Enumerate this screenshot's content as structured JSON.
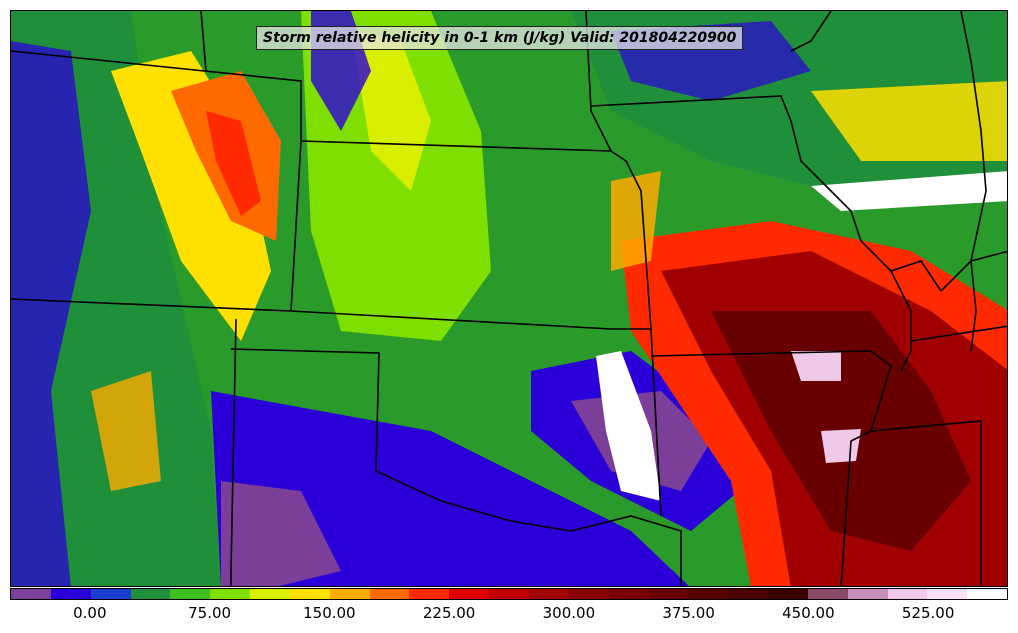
{
  "title": "Storm relative helicity in 0-1 km (J/kg) Valid: 201804220900",
  "colorbar": {
    "units": "J/kg",
    "min": -50,
    "max": 575,
    "tick_values": [
      0,
      75,
      150,
      225,
      300,
      375,
      450,
      525
    ],
    "tick_labels": [
      "0.00",
      "75.00",
      "150.00",
      "225.00",
      "300.00",
      "375.00",
      "450.00",
      "525.00"
    ],
    "colors": [
      "#7b3f9a",
      "#2b00d8",
      "#1a3fd0",
      "#1f8f3a",
      "#3fbf1f",
      "#7fdf00",
      "#d8f000",
      "#ffe000",
      "#ffaa00",
      "#ff6a00",
      "#ff2a00",
      "#e00000",
      "#c00000",
      "#a00000",
      "#8a0000",
      "#780000",
      "#680000",
      "#580000",
      "#4a0000",
      "#3a0000",
      "#8a4a6a",
      "#c890b8",
      "#f0c8e8",
      "#fde0f8",
      "#ffffff"
    ]
  },
  "map": {
    "region": "Central United States",
    "field": "0-1 km storm relative helicity"
  }
}
